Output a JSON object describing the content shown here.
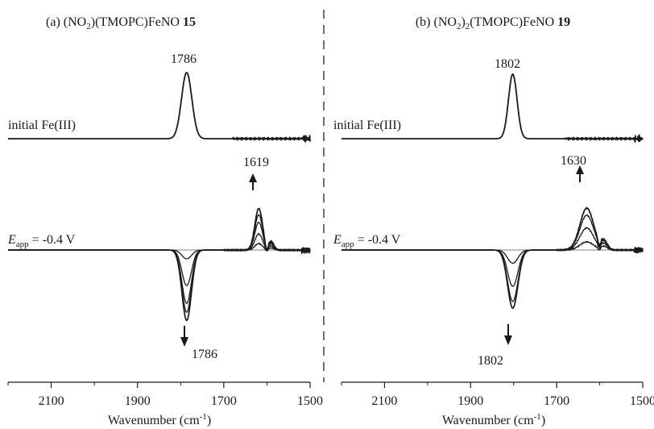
{
  "chart_data": [
    {
      "type": "line",
      "title_prefix": "(a) (NO",
      "title_sub1": "2",
      "title_mid": ")(TMOPC)FeNO",
      "title_sub2": "",
      "title_end": "",
      "compound_number": "15",
      "xlabel_main": "Wavenumber (cm",
      "xlabel_sup": "-1",
      "xlabel_close": ")",
      "x_reversed": true,
      "xlim": [
        2200,
        1500
      ],
      "xticks": [
        2100,
        1900,
        1700,
        1500
      ],
      "top_label": "initial Fe(III)",
      "top_peak": {
        "x": 1786,
        "height": 1.0,
        "width": 12,
        "label": "1786"
      },
      "eapp_E": "E",
      "eapp_sub": "app",
      "eapp_value": " = -0.4 V",
      "positive_band": {
        "x": 1619,
        "width": 9,
        "label": "1619",
        "arrow": "up",
        "heights": [
          0.12,
          0.3,
          0.52,
          0.66,
          0.78
        ]
      },
      "negative_band": {
        "x": 1786,
        "width": 11,
        "label": "1786",
        "arrow": "down",
        "depths": [
          0.12,
          0.48,
          0.72,
          0.84,
          0.95
        ]
      },
      "shoulder": {
        "x": 1590,
        "width": 6,
        "heights": [
          0.04,
          0.08,
          0.12,
          0.14,
          0.16
        ]
      }
    },
    {
      "type": "line",
      "title_prefix": "(b) (NO",
      "title_sub1": "2",
      "title_mid": ")",
      "title_sub2": "2",
      "title_end": "(TMOPC)FeNO",
      "compound_number": "19",
      "xlabel_main": "Wavenumber (cm",
      "xlabel_sup": "-1",
      "xlabel_close": ")",
      "x_reversed": true,
      "xlim": [
        2200,
        1500
      ],
      "xticks": [
        2100,
        1900,
        1700,
        1500
      ],
      "top_label": "initial Fe(III)",
      "top_peak": {
        "x": 1802,
        "height": 1.0,
        "width": 10,
        "label": "1802"
      },
      "eapp_E": "E",
      "eapp_sub": "app",
      "eapp_value": " = -0.4 V",
      "positive_band": {
        "x": 1630,
        "width": 16,
        "label": "1630",
        "arrow": "up",
        "heights": [
          0.14,
          0.38,
          0.6,
          0.72
        ]
      },
      "negative_band": {
        "x": 1802,
        "width": 12,
        "label": "1802",
        "arrow": "down",
        "depths": [
          0.2,
          0.55,
          0.78,
          0.88
        ]
      },
      "shoulder": {
        "x": 1590,
        "width": 8,
        "heights": [
          0.06,
          0.1,
          0.13,
          0.15
        ]
      }
    }
  ],
  "colors": {
    "trace": "#1a1a1a",
    "thin": "#555555",
    "divider": "#333333"
  }
}
